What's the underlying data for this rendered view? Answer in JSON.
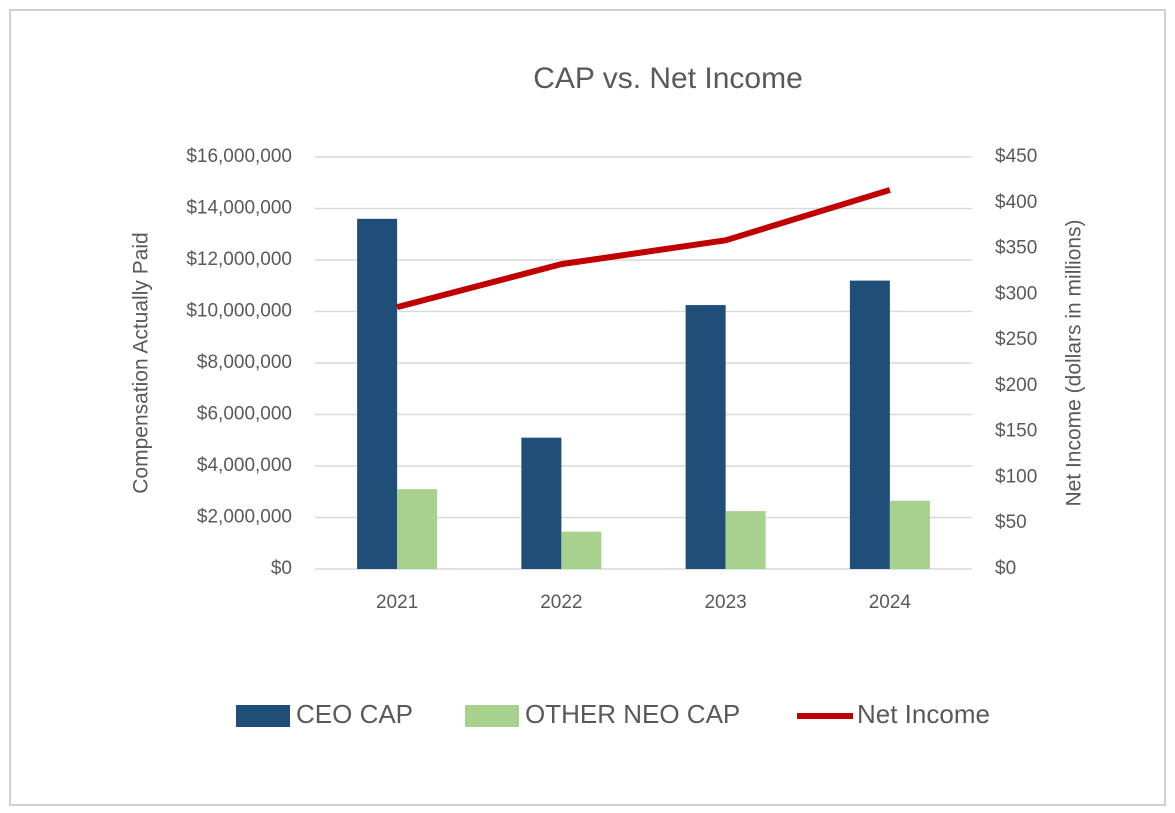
{
  "chart_data": {
    "type": "bar",
    "title": "CAP vs. Net Income",
    "y_label": "Compensation Actually Paid",
    "y2_label": "Net Income (dollars in millions)",
    "categories": [
      "2021",
      "2022",
      "2023",
      "2024"
    ],
    "series": [
      {
        "name": "CEO CAP",
        "type": "bar",
        "color": "#1f4e79",
        "values": [
          13600000,
          5100000,
          10250000,
          11200000
        ]
      },
      {
        "name": "OTHER NEO CAP",
        "type": "bar",
        "color": "#a9d18e",
        "values": [
          3100000,
          1450000,
          2250000,
          2650000
        ]
      },
      {
        "name": "Net Income",
        "type": "line",
        "axis": "y2",
        "color": "#c00000",
        "values": [
          286,
          333,
          359,
          414
        ]
      }
    ],
    "ylim": [
      0,
      16000000
    ],
    "yticks": [
      {
        "value": 0,
        "label": "$0"
      },
      {
        "value": 2000000,
        "label": "$2,000,000"
      },
      {
        "value": 4000000,
        "label": "$4,000,000"
      },
      {
        "value": 6000000,
        "label": "$6,000,000"
      },
      {
        "value": 8000000,
        "label": "$8,000,000"
      },
      {
        "value": 10000000,
        "label": "$10,000,000"
      },
      {
        "value": 12000000,
        "label": "$12,000,000"
      },
      {
        "value": 14000000,
        "label": "$14,000,000"
      },
      {
        "value": 16000000,
        "label": "$16,000,000"
      }
    ],
    "y2lim": [
      0,
      450
    ],
    "y2ticks": [
      {
        "value": 0,
        "label": "$0"
      },
      {
        "value": 50,
        "label": "$50"
      },
      {
        "value": 100,
        "label": "$100"
      },
      {
        "value": 150,
        "label": "$150"
      },
      {
        "value": 200,
        "label": "$200"
      },
      {
        "value": 250,
        "label": "$250"
      },
      {
        "value": 300,
        "label": "$300"
      },
      {
        "value": 350,
        "label": "$350"
      },
      {
        "value": 400,
        "label": "$400"
      },
      {
        "value": 450,
        "label": "$450"
      }
    ],
    "grid": true,
    "legend": "bottom"
  }
}
